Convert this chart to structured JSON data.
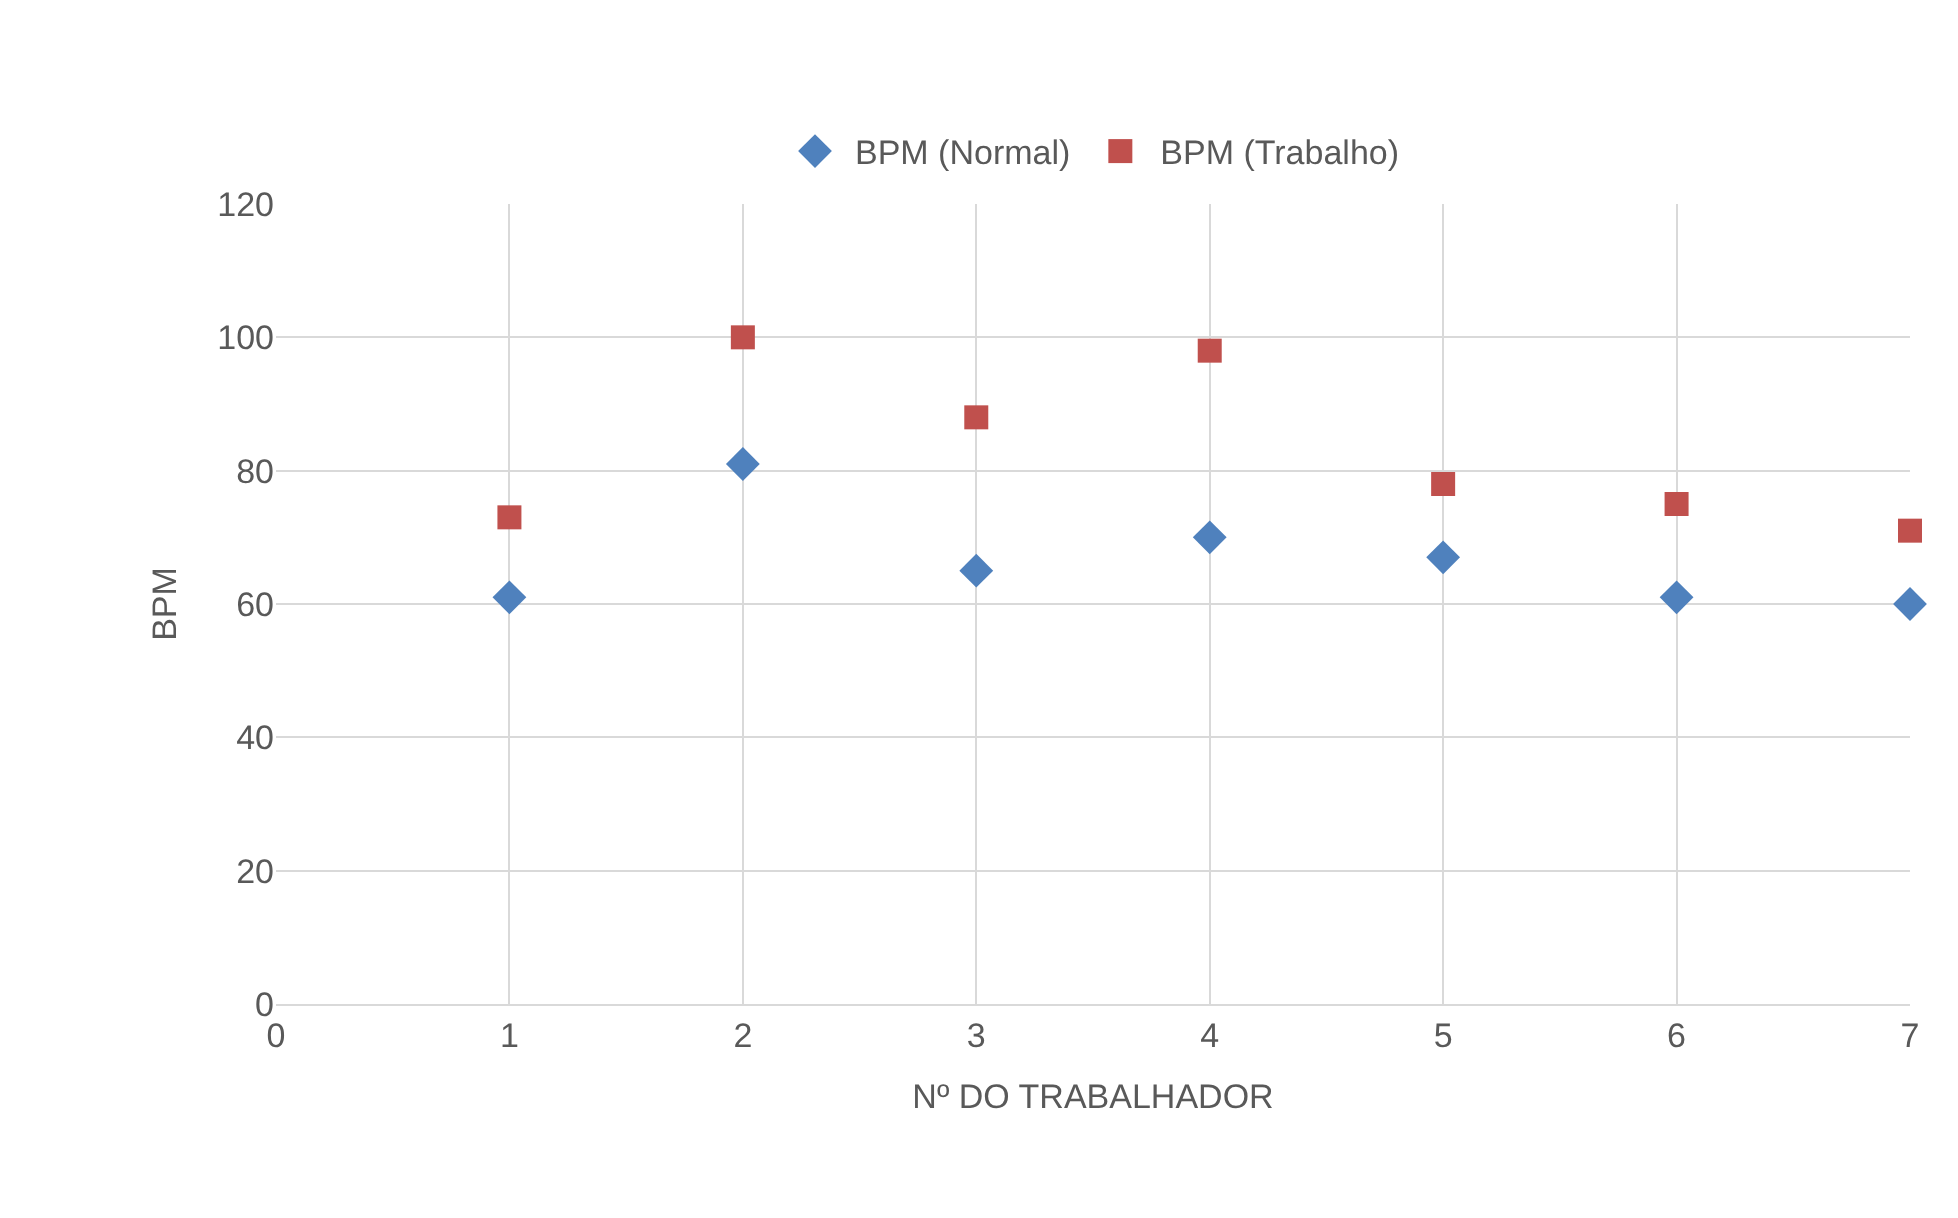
{
  "chart_data": {
    "type": "scatter",
    "xlabel": "Nº DO TRABALHADOR",
    "ylabel": "BPM",
    "x": [
      1,
      2,
      3,
      4,
      5,
      6,
      7
    ],
    "series": [
      {
        "name": "BPM (Normal)",
        "color": "#4f81bd",
        "marker": "diamond",
        "values": [
          61,
          81,
          65,
          70,
          67,
          61,
          60
        ]
      },
      {
        "name": "BPM (Trabalho)",
        "color": "#c0504d",
        "marker": "square",
        "values": [
          73,
          100,
          88,
          98,
          78,
          75,
          71
        ]
      }
    ],
    "xlim": [
      0,
      7
    ],
    "xticks": [
      0,
      1,
      2,
      3,
      4,
      5,
      6,
      7
    ],
    "ylim": [
      0,
      120
    ],
    "yticks": [
      0,
      20,
      40,
      60,
      80,
      100,
      120
    ],
    "grid": true,
    "legend": "top"
  }
}
